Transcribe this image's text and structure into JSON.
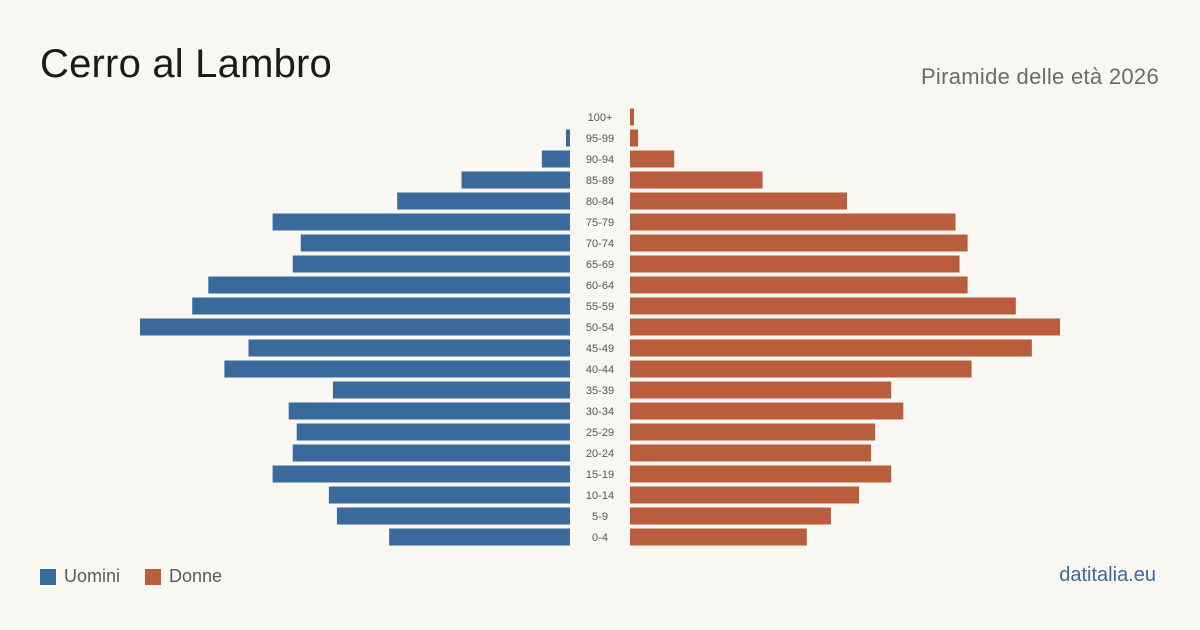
{
  "title": "Cerro al Lambro",
  "subtitle": "Piramide delle età 2026",
  "source": "datitalia.eu",
  "colors": {
    "men": "#3a6a9b",
    "women": "#b95d3c"
  },
  "chart_data": {
    "type": "bar",
    "orientation": "horizontal-pyramid",
    "categories": [
      "100+",
      "95-99",
      "90-94",
      "85-89",
      "80-84",
      "75-79",
      "70-74",
      "65-69",
      "60-64",
      "55-59",
      "50-54",
      "45-49",
      "40-44",
      "35-39",
      "30-34",
      "25-29",
      "20-24",
      "15-19",
      "10-14",
      "5-9",
      "0-4"
    ],
    "series": [
      {
        "name": "Uomini",
        "values": [
          0,
          1,
          7,
          27,
          43,
          74,
          67,
          69,
          90,
          94,
          107,
          80,
          86,
          59,
          70,
          68,
          69,
          74,
          60,
          58,
          45
        ]
      },
      {
        "name": "Donne",
        "values": [
          1,
          2,
          11,
          33,
          54,
          81,
          84,
          82,
          84,
          96,
          107,
          100,
          85,
          65,
          68,
          61,
          60,
          65,
          57,
          50,
          44
        ]
      }
    ],
    "legend": "bottom-left"
  }
}
